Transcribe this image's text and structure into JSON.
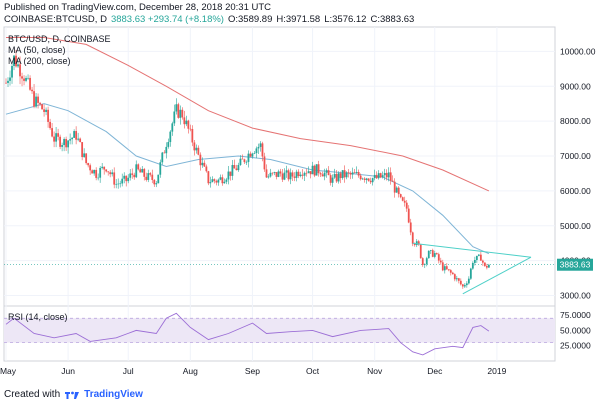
{
  "header": {
    "published": "Published on TradingView.com, December 28, 2018 20:31 UTC",
    "symbol": "COINBASE:BTCUSD, D",
    "change": "3883.63 +293.74 (+8.18%)",
    "open": "O:3589.89",
    "high": "H:3971.58",
    "low": "L:3576.12",
    "close": "C:3883.63"
  },
  "legend": {
    "series": "BTC/USD, D, COINBASE",
    "ma50": "MA (50, close)",
    "ma200": "MA (200, close)",
    "rsi": "RSI (14, close)"
  },
  "price_axis": {
    "ticks": [
      "10000.00",
      "9000.00",
      "8000.00",
      "7000.00",
      "6000.00",
      "5000.00",
      "4000.00",
      "3000.00"
    ],
    "last_price": "3883.63"
  },
  "rsi_axis": {
    "ticks": [
      "75.0000",
      "50.0000",
      "25.0000"
    ]
  },
  "time_axis": {
    "ticks": [
      "May",
      "Jun",
      "Jul",
      "Aug",
      "Sep",
      "Oct",
      "Nov",
      "Dec",
      "2019"
    ]
  },
  "footer": {
    "created_with": "Created with",
    "brand": "TradingView"
  },
  "colors": {
    "up": "#26a69a",
    "down": "#ef5350",
    "ma50": "#7fb5d6",
    "ma200": "#e57373",
    "rsi": "#9c6fd6",
    "rsi_band": "#ede7f6",
    "triangle": "#4dd0c8"
  },
  "chart_data": {
    "type": "candlestick",
    "close_path": [
      [
        "2018-05-01",
        9100
      ],
      [
        "2018-05-05",
        9800
      ],
      [
        "2018-05-10",
        9300
      ],
      [
        "2018-05-15",
        8600
      ],
      [
        "2018-05-20",
        8300
      ],
      [
        "2018-05-25",
        7500
      ],
      [
        "2018-05-30",
        7400
      ],
      [
        "2018-06-05",
        7600
      ],
      [
        "2018-06-10",
        6800
      ],
      [
        "2018-06-15",
        6500
      ],
      [
        "2018-06-20",
        6700
      ],
      [
        "2018-06-25",
        6200
      ],
      [
        "2018-06-30",
        6300
      ],
      [
        "2018-07-05",
        6600
      ],
      [
        "2018-07-10",
        6400
      ],
      [
        "2018-07-15",
        6300
      ],
      [
        "2018-07-20",
        7400
      ],
      [
        "2018-07-25",
        8300
      ],
      [
        "2018-07-28",
        8200
      ],
      [
        "2018-08-01",
        7600
      ],
      [
        "2018-08-05",
        7000
      ],
      [
        "2018-08-10",
        6300
      ],
      [
        "2018-08-15",
        6300
      ],
      [
        "2018-08-20",
        6500
      ],
      [
        "2018-08-25",
        6700
      ],
      [
        "2018-09-01",
        7200
      ],
      [
        "2018-09-05",
        7300
      ],
      [
        "2018-09-08",
        6400
      ],
      [
        "2018-09-15",
        6500
      ],
      [
        "2018-09-20",
        6400
      ],
      [
        "2018-09-25",
        6600
      ],
      [
        "2018-10-01",
        6600
      ],
      [
        "2018-10-05",
        6600
      ],
      [
        "2018-10-11",
        6300
      ],
      [
        "2018-10-15",
        6450
      ],
      [
        "2018-10-20",
        6450
      ],
      [
        "2018-10-25",
        6450
      ],
      [
        "2018-11-01",
        6350
      ],
      [
        "2018-11-08",
        6450
      ],
      [
        "2018-11-14",
        5700
      ],
      [
        "2018-11-17",
        5500
      ],
      [
        "2018-11-20",
        4600
      ],
      [
        "2018-11-23",
        4400
      ],
      [
        "2018-11-25",
        3900
      ],
      [
        "2018-11-28",
        4200
      ],
      [
        "2018-12-01",
        4200
      ],
      [
        "2018-12-05",
        3800
      ],
      [
        "2018-12-10",
        3600
      ],
      [
        "2018-12-15",
        3250
      ],
      [
        "2018-12-18",
        3500
      ],
      [
        "2018-12-20",
        4000
      ],
      [
        "2018-12-24",
        4100
      ],
      [
        "2018-12-26",
        3800
      ],
      [
        "2018-12-28",
        3883.63
      ]
    ],
    "ma50": [
      [
        "2018-05-01",
        8200
      ],
      [
        "2018-05-20",
        8500
      ],
      [
        "2018-06-01",
        8300
      ],
      [
        "2018-06-20",
        7700
      ],
      [
        "2018-07-05",
        7000
      ],
      [
        "2018-07-20",
        6700
      ],
      [
        "2018-08-05",
        6900
      ],
      [
        "2018-08-25",
        7000
      ],
      [
        "2018-09-10",
        6900
      ],
      [
        "2018-10-01",
        6600
      ],
      [
        "2018-10-20",
        6500
      ],
      [
        "2018-11-05",
        6400
      ],
      [
        "2018-11-20",
        6000
      ],
      [
        "2018-12-05",
        5300
      ],
      [
        "2018-12-20",
        4400
      ],
      [
        "2018-12-28",
        4200
      ]
    ],
    "ma200": [
      [
        "2018-05-01",
        10400
      ],
      [
        "2018-05-20",
        10400
      ],
      [
        "2018-06-10",
        10200
      ],
      [
        "2018-07-01",
        9600
      ],
      [
        "2018-07-20",
        9000
      ],
      [
        "2018-08-10",
        8300
      ],
      [
        "2018-09-01",
        7800
      ],
      [
        "2018-09-25",
        7500
      ],
      [
        "2018-10-20",
        7300
      ],
      [
        "2018-11-15",
        7000
      ],
      [
        "2018-12-05",
        6600
      ],
      [
        "2018-12-28",
        6000
      ]
    ],
    "rsi": [
      [
        "2018-05-01",
        60
      ],
      [
        "2018-05-05",
        70
      ],
      [
        "2018-05-15",
        45
      ],
      [
        "2018-05-25",
        38
      ],
      [
        "2018-06-05",
        45
      ],
      [
        "2018-06-12",
        32
      ],
      [
        "2018-06-25",
        38
      ],
      [
        "2018-07-05",
        50
      ],
      [
        "2018-07-15",
        45
      ],
      [
        "2018-07-20",
        70
      ],
      [
        "2018-07-25",
        78
      ],
      [
        "2018-08-01",
        55
      ],
      [
        "2018-08-10",
        35
      ],
      [
        "2018-08-20",
        45
      ],
      [
        "2018-09-01",
        62
      ],
      [
        "2018-09-08",
        45
      ],
      [
        "2018-09-20",
        48
      ],
      [
        "2018-10-01",
        50
      ],
      [
        "2018-10-11",
        40
      ],
      [
        "2018-10-25",
        50
      ],
      [
        "2018-11-08",
        53
      ],
      [
        "2018-11-14",
        30
      ],
      [
        "2018-11-20",
        15
      ],
      [
        "2018-11-25",
        10
      ],
      [
        "2018-12-01",
        20
      ],
      [
        "2018-12-10",
        24
      ],
      [
        "2018-12-15",
        22
      ],
      [
        "2018-12-20",
        55
      ],
      [
        "2018-12-24",
        58
      ],
      [
        "2018-12-28",
        49
      ]
    ],
    "triangle_lines": [
      [
        [
          "2018-11-20",
          4500
        ],
        [
          "2019-01-18",
          4100
        ]
      ],
      [
        [
          "2018-12-15",
          3050
        ],
        [
          "2019-01-18",
          4100
        ]
      ]
    ],
    "ylim": [
      2700,
      10700
    ],
    "rsi_ylim": [
      0,
      90
    ],
    "xlim": [
      "2018-04-30",
      "2019-01-30"
    ]
  }
}
